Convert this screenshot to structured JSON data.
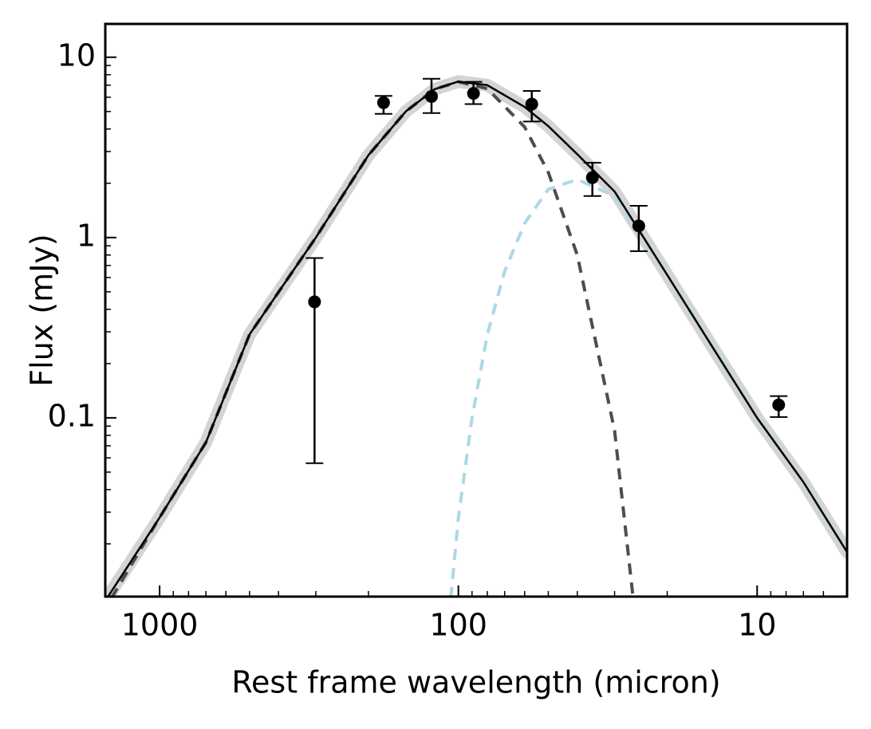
{
  "chart_data": {
    "type": "scatter",
    "xlabel": "Rest frame wavelength (micron)",
    "ylabel": "Flux (mJy)",
    "xscale": "log",
    "yscale": "log",
    "xlim": [
      1520,
      5
    ],
    "ylim": [
      0.0102,
      15.3
    ],
    "xticks": [
      1000,
      100,
      10
    ],
    "yticks": [
      10,
      1,
      0.1
    ],
    "xminor_ticks": [
      900,
      800,
      700,
      600,
      500,
      400,
      300,
      200,
      90,
      80,
      70,
      60,
      50,
      40,
      30,
      20,
      9,
      8,
      7,
      6
    ],
    "yminor_ticks": [
      0.02,
      0.03,
      0.04,
      0.05,
      0.06,
      0.07,
      0.08,
      0.09,
      0.2,
      0.3,
      0.4,
      0.5,
      0.6,
      0.7,
      0.8,
      0.9,
      2,
      3,
      4,
      5,
      6,
      7,
      8,
      9
    ],
    "points": {
      "color": "#000000",
      "x": [
        303,
        178,
        123,
        89,
        56.8,
        35.6,
        24.9,
        8.47
      ],
      "values": [
        0.44,
        5.6,
        6.06,
        6.3,
        5.5,
        2.15,
        1.16,
        0.118
      ],
      "lower": [
        0.056,
        4.85,
        4.9,
        5.5,
        4.4,
        1.7,
        0.84,
        0.101
      ],
      "upper": [
        0.77,
        6.1,
        7.6,
        7.3,
        6.5,
        2.6,
        1.5,
        0.132
      ]
    },
    "curves": [
      {
        "color": "#cccccc",
        "linestyle": "band",
        "x": [
          1500,
          1000,
          700,
          500,
          300,
          200,
          150,
          120,
          100,
          80,
          60,
          50,
          40,
          30,
          20,
          15,
          10,
          7,
          5
        ],
        "values": [
          0.01,
          0.028,
          0.073,
          0.29,
          1.0,
          2.86,
          5.0,
          6.65,
          7.33,
          7.0,
          5.3,
          4.15,
          2.9,
          1.8,
          0.62,
          0.29,
          0.1,
          0.044,
          0.018
        ]
      },
      {
        "color": "#4d4d4d",
        "linestyle": "dashed",
        "x": [
          1450,
          1000,
          700,
          500,
          300,
          200,
          150,
          120,
          100,
          80,
          60,
          50,
          40,
          30,
          26
        ],
        "values": [
          0.01,
          0.028,
          0.073,
          0.29,
          1.0,
          2.86,
          5.0,
          6.65,
          7.3,
          6.7,
          4.1,
          2.3,
          0.8,
          0.085,
          0.01
        ]
      },
      {
        "color": "#add8e6",
        "linestyle": "dashed",
        "x": [
          106,
          100,
          90,
          80,
          70,
          60,
          50,
          40,
          30,
          20,
          15,
          10,
          7,
          5
        ],
        "values": [
          0.01,
          0.028,
          0.1,
          0.29,
          0.65,
          1.2,
          1.85,
          2.1,
          1.7,
          0.62,
          0.29,
          0.1,
          0.044,
          0.018
        ]
      },
      {
        "color": "#000000",
        "linestyle": "solid",
        "x": [
          1500,
          1000,
          700,
          500,
          300,
          200,
          150,
          120,
          100,
          80,
          60,
          50,
          40,
          30,
          20,
          15,
          10,
          7,
          5
        ],
        "values": [
          0.01,
          0.028,
          0.073,
          0.29,
          1.0,
          2.86,
          5.0,
          6.65,
          7.33,
          7.0,
          5.3,
          4.15,
          2.9,
          1.8,
          0.62,
          0.29,
          0.1,
          0.044,
          0.018
        ]
      }
    ]
  }
}
